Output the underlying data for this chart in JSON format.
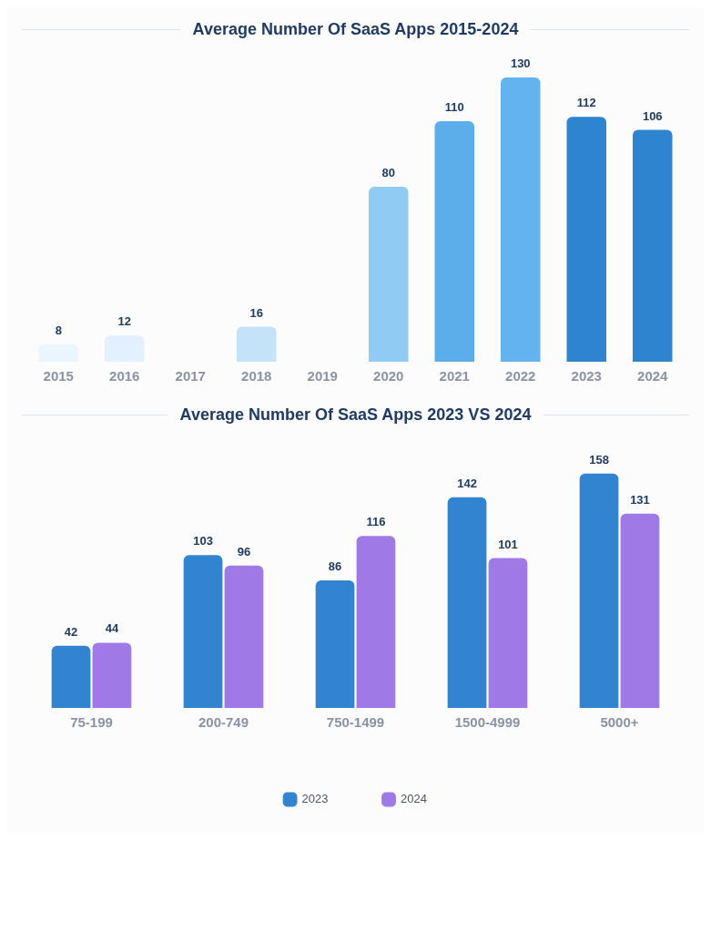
{
  "chart_data": [
    {
      "type": "bar",
      "title": "Average Number Of SaaS Apps 2015-2024",
      "categories": [
        "2015",
        "2016",
        "2017",
        "2018",
        "2019",
        "2020",
        "2021",
        "2022",
        "2023",
        "2024"
      ],
      "values": [
        8,
        12,
        null,
        16,
        null,
        80,
        110,
        130,
        112,
        106
      ],
      "colors": [
        "#eaf5fe",
        "#e2f1fd",
        "#eef0f4",
        "#c5e3f8",
        "#eef0f4",
        "#8fcbf3",
        "#5caeea",
        "#63b4ee",
        "#2f84d0",
        "#2f84d0"
      ],
      "data_labels": true,
      "legend": false,
      "grid": false
    },
    {
      "type": "bar",
      "title": "Average Number Of SaaS Apps 2023 VS 2024",
      "categories": [
        "75-199",
        "200-749",
        "750-1499",
        "1500-4999",
        "5000+"
      ],
      "series": [
        {
          "name": "2023",
          "color": "#3283d0",
          "values": [
            42,
            103,
            86,
            142,
            158
          ]
        },
        {
          "name": "2024",
          "color": "#9f79e6",
          "values": [
            44,
            96,
            116,
            101,
            131
          ]
        }
      ],
      "data_labels": true,
      "legend": "bottom",
      "grid": false
    }
  ]
}
